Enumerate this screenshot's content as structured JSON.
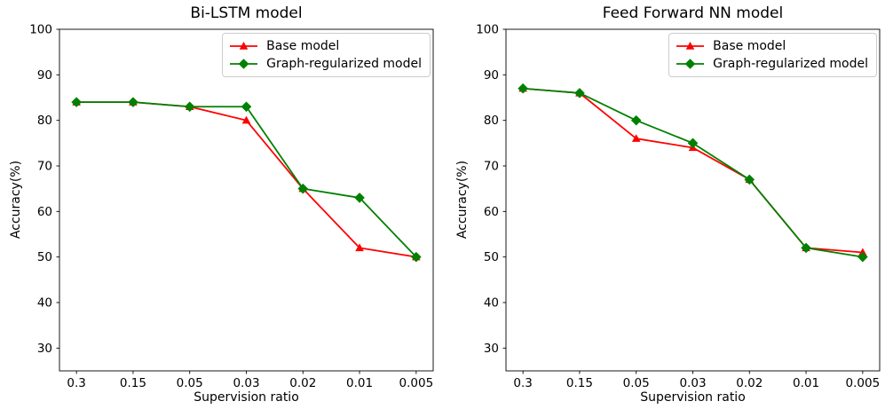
{
  "legend": {
    "items": [
      {
        "label": "Base model",
        "color": "#ff0000",
        "marker": "triangle-up"
      },
      {
        "label": "Graph-regularized model",
        "color": "#008000",
        "marker": "diamond"
      }
    ],
    "position": "upper right"
  },
  "chart_data": [
    {
      "type": "line",
      "title": "Bi-LSTM model",
      "xlabel": "Supervision ratio",
      "ylabel": "Accuracy(%)",
      "categories": [
        "0.3",
        "0.15",
        "0.05",
        "0.03",
        "0.02",
        "0.01",
        "0.005"
      ],
      "yticks": [
        30,
        40,
        50,
        60,
        70,
        80,
        90,
        100
      ],
      "ylim": [
        25,
        100
      ],
      "grid": false,
      "legend_position": "upper right",
      "series": [
        {
          "name": "Base model",
          "color": "#ff0000",
          "marker": "triangle-up",
          "values": [
            84,
            84,
            83,
            80,
            65,
            52,
            50
          ]
        },
        {
          "name": "Graph-regularized model",
          "color": "#008000",
          "marker": "diamond",
          "values": [
            84,
            84,
            83,
            83,
            65,
            63,
            50
          ]
        }
      ]
    },
    {
      "type": "line",
      "title": "Feed Forward NN model",
      "xlabel": "Supervision ratio",
      "ylabel": "Accuracy(%)",
      "categories": [
        "0.3",
        "0.15",
        "0.05",
        "0.03",
        "0.02",
        "0.01",
        "0.005"
      ],
      "yticks": [
        30,
        40,
        50,
        60,
        70,
        80,
        90,
        100
      ],
      "ylim": [
        25,
        100
      ],
      "grid": false,
      "legend_position": "upper right",
      "series": [
        {
          "name": "Base model",
          "color": "#ff0000",
          "marker": "triangle-up",
          "values": [
            87,
            86,
            76,
            74,
            67,
            52,
            51
          ]
        },
        {
          "name": "Graph-regularized model",
          "color": "#008000",
          "marker": "diamond",
          "values": [
            87,
            86,
            80,
            75,
            67,
            52,
            50
          ]
        }
      ]
    }
  ]
}
